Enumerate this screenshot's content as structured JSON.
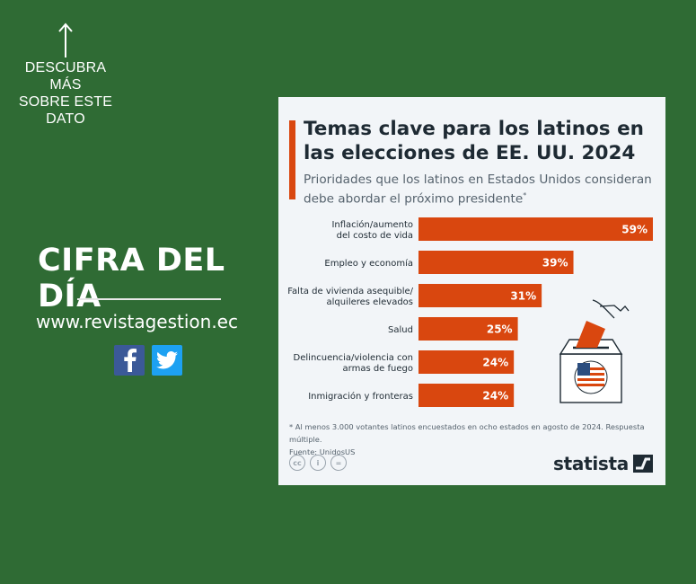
{
  "cta": {
    "lines": [
      "DESCUBRA MÁS",
      "SOBRE ESTE",
      "DATO"
    ]
  },
  "left": {
    "title": "CIFRA DEL DÍA",
    "website": "www.revistagestion.ec"
  },
  "social": [
    "facebook-icon",
    "twitter-icon"
  ],
  "colors": {
    "background": "#2f6b34",
    "bar": "#d9470f",
    "card": "#f2f5f8"
  },
  "card": {
    "title_lines": [
      "Temas clave para los latinos en",
      "las elecciones de EE. UU. 2024"
    ],
    "subtitle_lines": [
      "Prioridades que los latinos en Estados Unidos consideran",
      "debe abordar el próximo presidente"
    ],
    "subtitle_mark": "*",
    "footnote": "* Al menos 3.000 votantes latinos encuestados en ocho estados en agosto de 2024. Respuesta múltiple.",
    "source": "Fuente: UnidosUS",
    "brand": "statista",
    "license_icons": [
      "cc-icon",
      "by-icon",
      "nd-icon"
    ]
  },
  "chart_data": {
    "type": "bar",
    "orientation": "horizontal",
    "categories": [
      [
        "Inflación/aumento",
        "del costo de vida"
      ],
      [
        "Empleo y economía"
      ],
      [
        "Falta de vivienda asequible/",
        "alquileres elevados"
      ],
      [
        "Salud"
      ],
      [
        "Delincuencia/violencia con",
        "armas de fuego"
      ],
      [
        "Inmigración y fronteras"
      ]
    ],
    "values": [
      59,
      39,
      31,
      25,
      24,
      24
    ],
    "labels": [
      "59%",
      "39%",
      "31%",
      "25%",
      "24%",
      "24%"
    ],
    "unit": "%",
    "xlim": [
      0,
      59
    ]
  }
}
